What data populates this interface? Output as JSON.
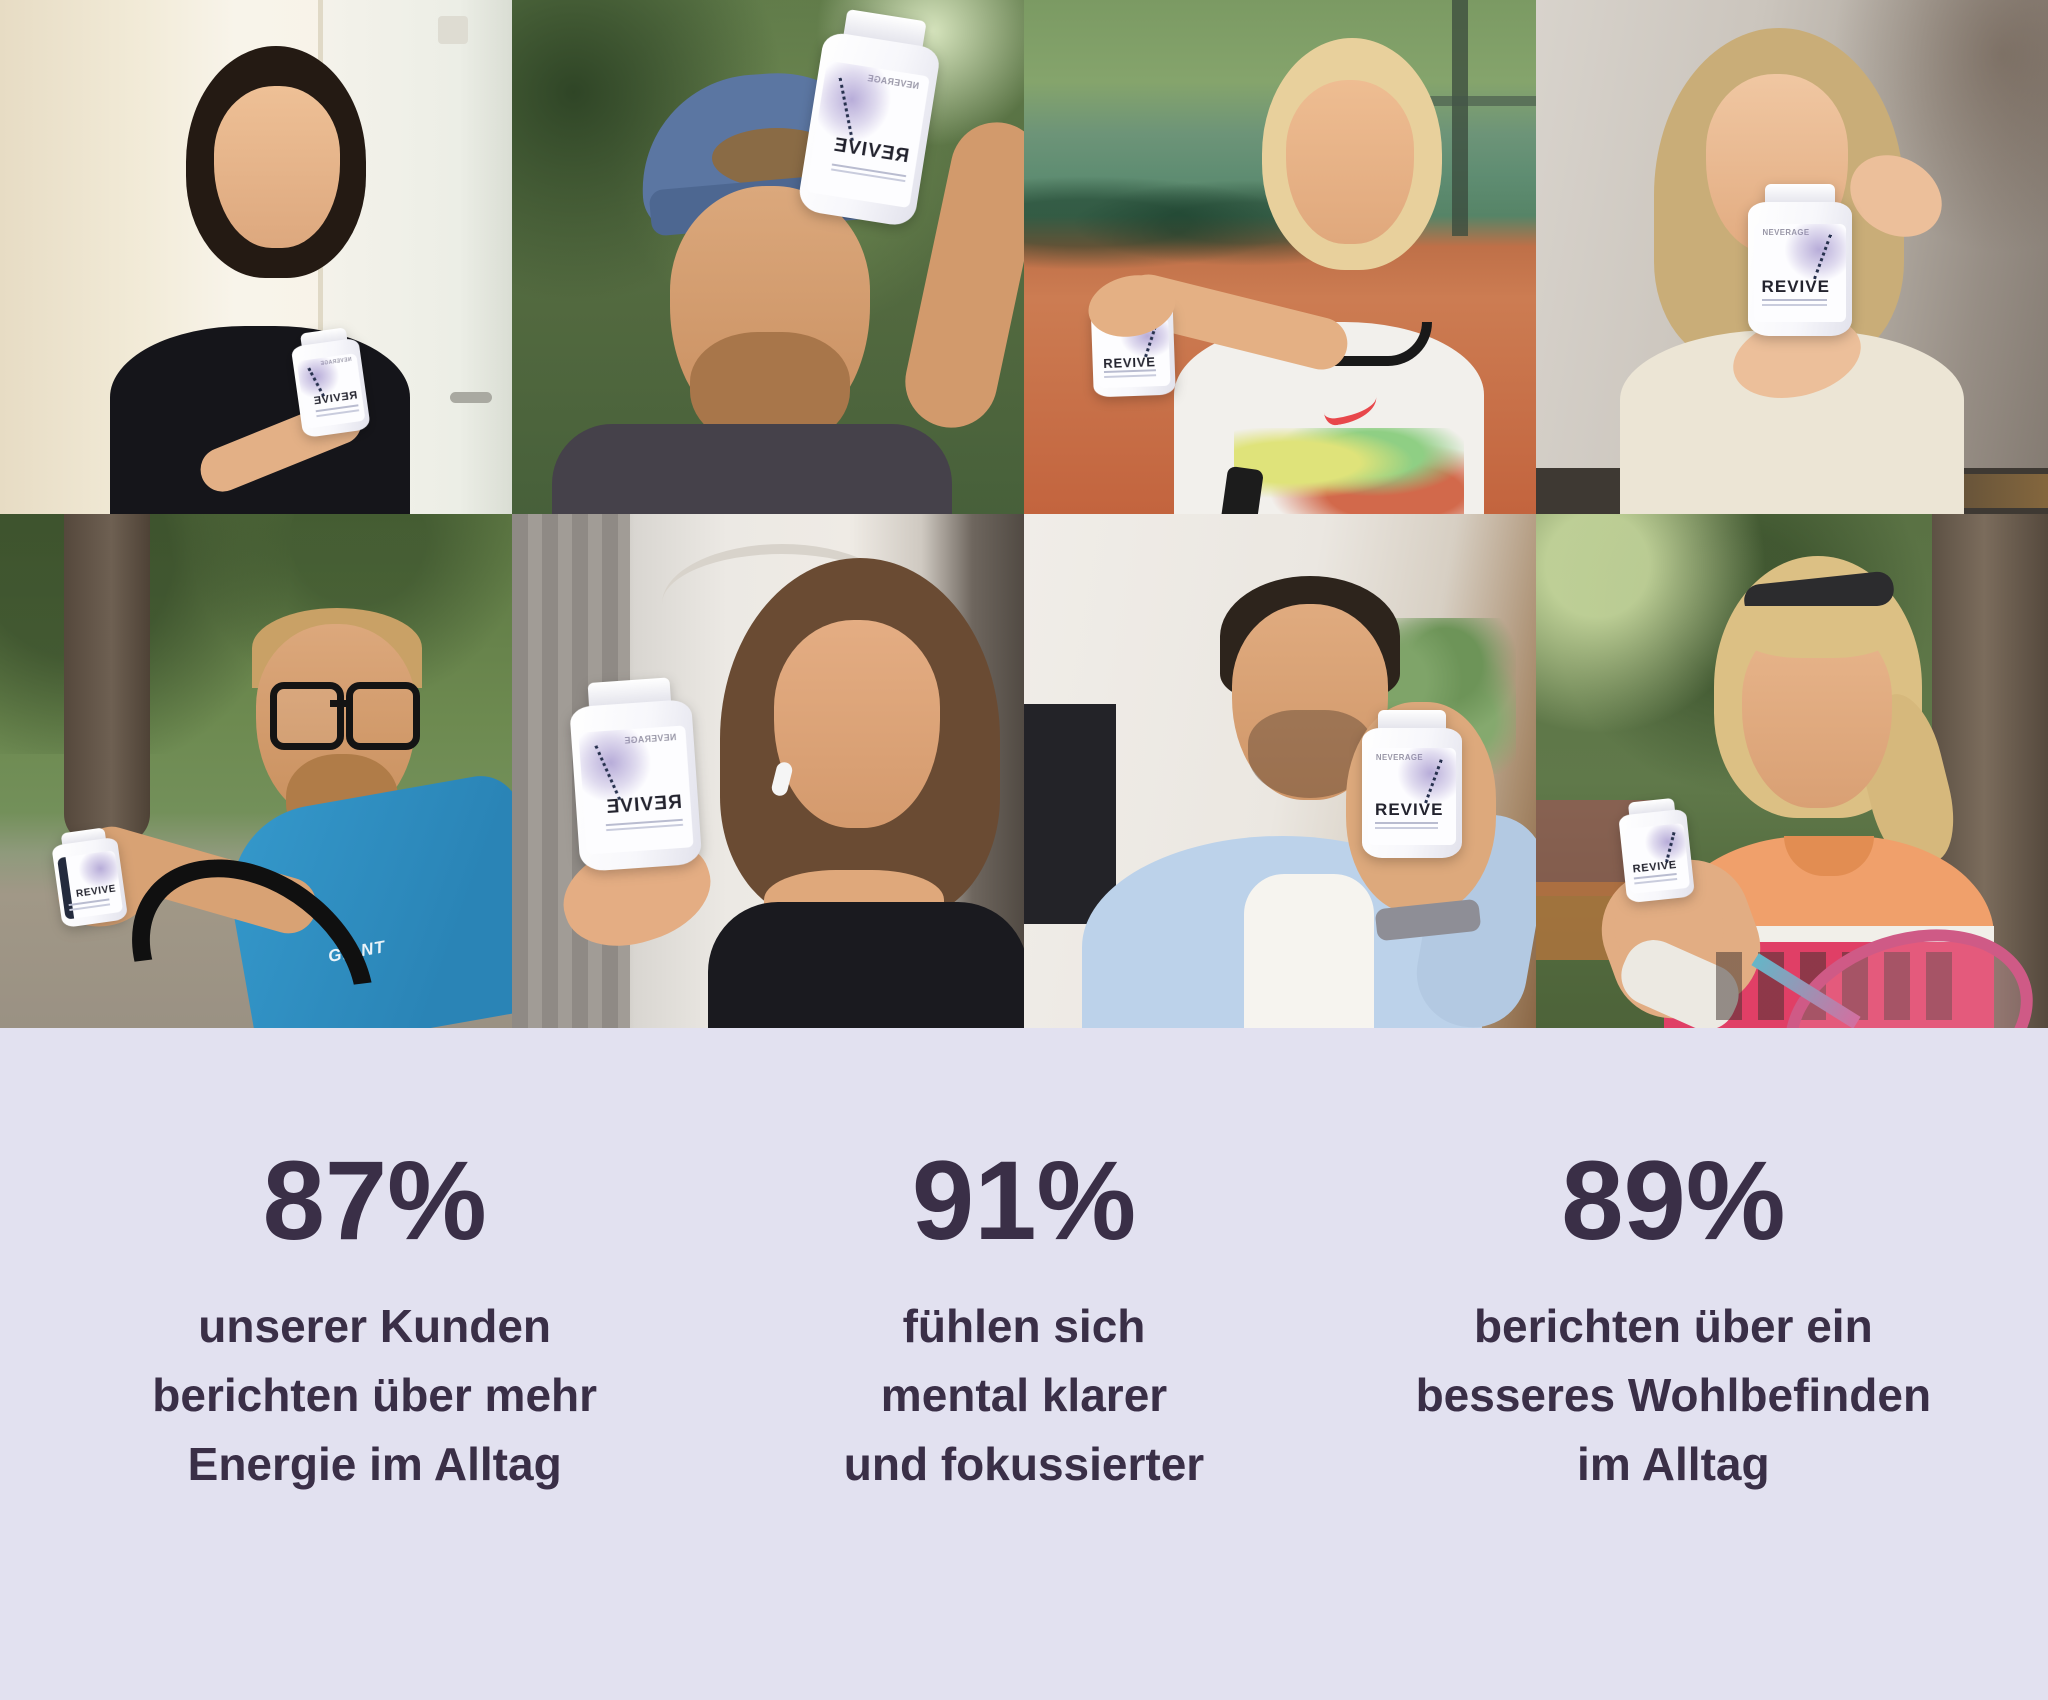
{
  "product": {
    "name": "REVIVE",
    "brand": "NEVERAGE"
  },
  "photos": [
    {
      "description": "Woman with dark hair in a black tank top pointing at a white REVIVE supplement bottle, indoors beside a white door",
      "bottle_label_mirrored": true
    },
    {
      "description": "Bearded man wearing a backwards blue cap outdoors among trees, holding a white REVIVE bottle up beside his head",
      "bottle_label_mirrored": true
    },
    {
      "description": "Smiling blonde woman on a clay tennis court in a white Nike sleeveless shirt, holding a REVIVE bottle toward the camera",
      "bottle_label_mirrored": false
    },
    {
      "description": "Smiling woman with long light-brown hair holding a REVIVE bottle with both hands in front of grey cabinets",
      "bottle_label_mirrored": false
    },
    {
      "description": "Cyclist with glasses and beard in a blue GIANT jersey leaning on drop handlebars in a park, white bottle in his open hand",
      "bottle_label_mirrored": false,
      "jersey_text": "GIANT"
    },
    {
      "description": "Woman with brown hair and a white earbud in a black top holding a large white REVIVE bottle, indoors",
      "bottle_label_mirrored": true
    },
    {
      "description": "Man with dark hair and stubble in a light blue blazer over a white shirt holding a REVIVE bottle toward the camera in a living room",
      "bottle_label_mirrored": false
    },
    {
      "description": "Smiling senior blonde woman with sunglasses on her head, orange and pink tennis polo, holding a white bottle and a tennis racket outdoors",
      "bottle_label_mirrored": false
    }
  ],
  "stats": {
    "background_color": "#e2e1f0",
    "text_color": "#3a2f47",
    "items": [
      {
        "value": "87%",
        "description": "unserer Kunden\nberichten über mehr\nEnergie im Alltag"
      },
      {
        "value": "91%",
        "description": "fühlen sich\nmental klarer\nund fokussierter"
      },
      {
        "value": "89%",
        "description": "berichten über ein\nbesseres Wohlbefinden\nim Alltag"
      }
    ]
  }
}
